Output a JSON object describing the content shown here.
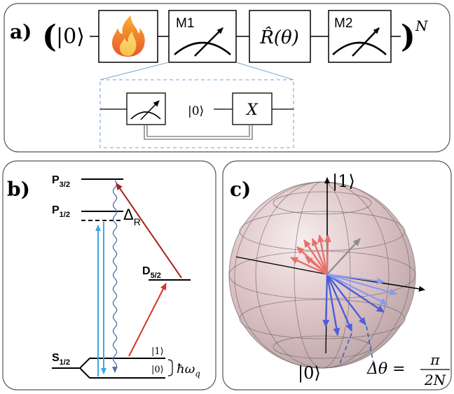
{
  "panel_a": {
    "label": "a)",
    "open_paren": "(",
    "close_paren": ")",
    "exponent": "N",
    "ket_zero": "|0⟩",
    "gate_heat_icon": "fire-icon",
    "gate_m1_label": "M1",
    "gate_rotation_label": "R̂(θ)",
    "gate_m2_label": "M2",
    "inset_ket_zero": "|0⟩",
    "inset_x_gate_label": "X"
  },
  "panel_b": {
    "label": "b)",
    "level_p32": {
      "main": "P",
      "sub": "3/2"
    },
    "level_p12": {
      "main": "P",
      "sub": "1/2"
    },
    "level_d52": {
      "main": "D",
      "sub": "5/2"
    },
    "level_s12": {
      "main": "S",
      "sub": "1/2"
    },
    "detuning": {
      "main": "Δ",
      "sub": "R"
    },
    "ket_one": "|1⟩",
    "ket_zero": "|0⟩",
    "hbar_omega": "ħω",
    "hbar_omega_sub": "q",
    "colors": {
      "blue_beam": "#3ba7e0",
      "red_beam": "#d8342a",
      "dark_red_beam": "#a8231c",
      "decay_wave": "#5b6fb0"
    }
  },
  "panel_c": {
    "label": "c)",
    "ket_one": "|1⟩",
    "ket_zero": "|0⟩",
    "delta_theta": "Δθ =",
    "fraction_num": "π",
    "fraction_den": "2N",
    "colors": {
      "red_arrows": "#e8706a",
      "blue_arrows": "#4b5fd8",
      "sphere": "#dcb7b7"
    }
  }
}
